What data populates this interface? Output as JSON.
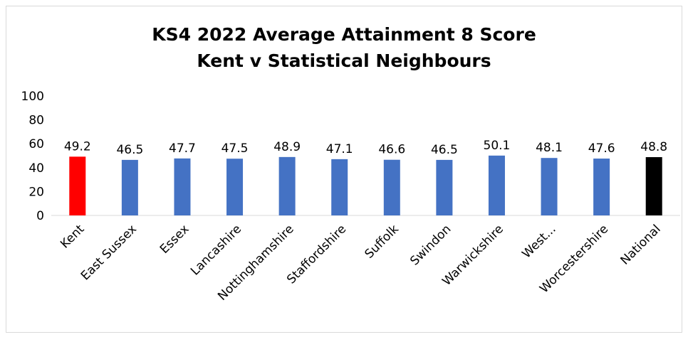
{
  "chart_data": {
    "type": "bar",
    "title_line1": "KS4 2022 Average Attainment 8 Score",
    "title_line2": "Kent v Statistical Neighbours",
    "categories": [
      "Kent",
      "East Sussex",
      "Essex",
      "Lancashire",
      "Nottinghamshire",
      "Staffordshire",
      "Suffolk",
      "Swindon",
      "Warwickshire",
      "West...",
      "Worcestershire",
      "National"
    ],
    "values": [
      49.2,
      46.5,
      47.7,
      47.5,
      48.9,
      47.1,
      46.6,
      46.5,
      50.1,
      48.1,
      47.6,
      48.8
    ],
    "data_labels": [
      "49.2",
      "46.5",
      "47.7",
      "47.5",
      "48.9",
      "47.1",
      "46.6",
      "46.5",
      "50.1",
      "48.1",
      "47.6",
      "48.8"
    ],
    "ylim": [
      0,
      100
    ],
    "yticks": [
      "0",
      "20",
      "40",
      "60",
      "80",
      "100"
    ],
    "ytick_values": [
      0,
      20,
      40,
      60,
      80,
      100
    ],
    "grid": false,
    "legend": "none",
    "colors": {
      "default": "#4472c4",
      "Kent": "#ff0000",
      "National": "#000000"
    }
  }
}
